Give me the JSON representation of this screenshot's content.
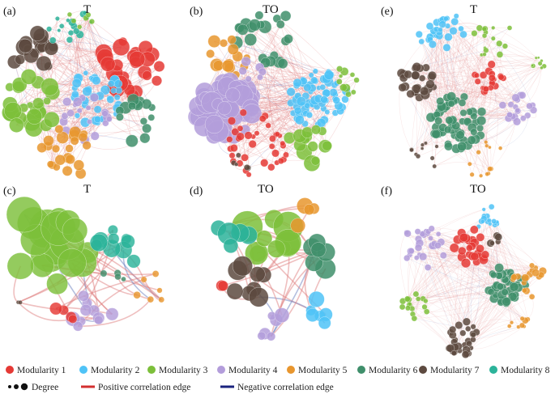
{
  "colors": {
    "m1": "#e53935",
    "m2": "#4fc3f7",
    "m3": "#7cbf3a",
    "m4": "#b39ddb",
    "m5": "#e8962e",
    "m6": "#3f8f6b",
    "m7": "#5d4a40",
    "m8": "#2bb39a",
    "pos": "#e08080",
    "neg": "#6a7fc0",
    "pos_line": "#d32f2f",
    "neg_line": "#1a237e"
  },
  "panels": [
    {
      "label": "(a)",
      "title": "T"
    },
    {
      "label": "(b)",
      "title": "TO"
    },
    {
      "label": "(e)",
      "title": "T"
    },
    {
      "label": "(c)",
      "title": "T"
    },
    {
      "label": "(d)",
      "title": "TO"
    },
    {
      "label": "(f)",
      "title": "TO"
    }
  ],
  "legend": {
    "modules": [
      {
        "key": "m1",
        "label": "Modularity 1"
      },
      {
        "key": "m2",
        "label": "Modularity 2"
      },
      {
        "key": "m3",
        "label": "Modularity 3"
      },
      {
        "key": "m4",
        "label": "Modularity 4"
      },
      {
        "key": "m5",
        "label": "Modularity 5"
      },
      {
        "key": "m6",
        "label": "Modularity 6"
      },
      {
        "key": "m7",
        "label": "Modularity 7"
      },
      {
        "key": "m8",
        "label": "Modularity 8"
      }
    ],
    "degree": "Degree",
    "positive_edge": "Positive correlation edge",
    "negative_edge": "Negative correlation edge"
  }
}
